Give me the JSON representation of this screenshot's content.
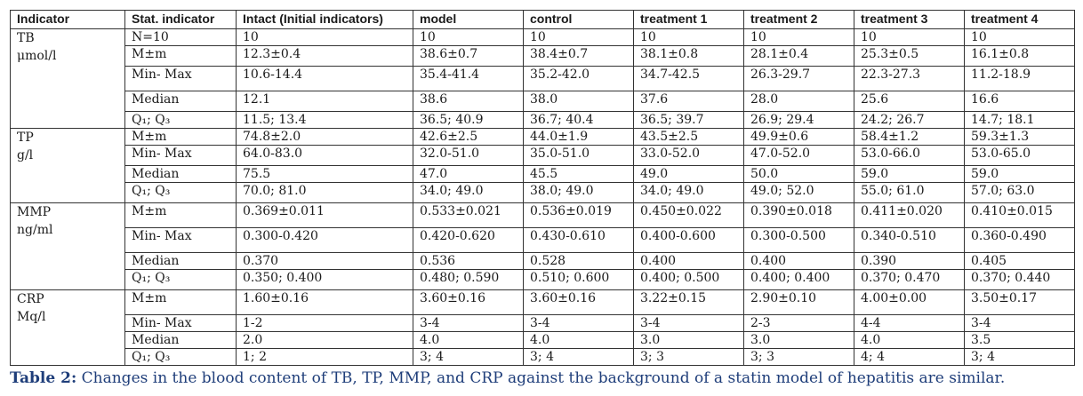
{
  "table": {
    "headers": [
      "Indicator",
      "Stat. indicator",
      "Intact (Initial indicators)",
      "model",
      "control",
      "treatment 1",
      "treatment 2",
      "treatment 3",
      "treatment 4"
    ],
    "groups": [
      {
        "name_lines": [
          "TB",
          "μmol/l"
        ],
        "rows": [
          {
            "stat": "N=10",
            "values": [
              "10",
              "10",
              "10",
              "10",
              "10",
              "10",
              "10"
            ]
          },
          {
            "stat": "M±m",
            "values": [
              "12.3±0.4",
              "38.6±0.7",
              "38.4±0.7",
              "38.1±0.8",
              "28.1±0.4",
              "25.3±0.5",
              "16.1±0.8"
            ]
          },
          {
            "stat": "Min- Max",
            "values": [
              "10.6-14.4",
              "35.4-41.4",
              "35.2-42.0",
              "34.7-42.5",
              "26.3-29.7",
              "22.3-27.3",
              "11.2-18.9"
            ]
          },
          {
            "stat": "Median",
            "values": [
              "12.1",
              "38.6",
              "38.0",
              "37.6",
              "28.0",
              "25.6",
              "16.6"
            ]
          },
          {
            "stat": "Q₁; Q₃",
            "values": [
              "11.5; 13.4",
              "36.5; 40.9",
              "36.7; 40.4",
              "36.5; 39.7",
              "26.9; 29.4",
              "24.2; 26.7",
              "14.7; 18.1"
            ]
          }
        ]
      },
      {
        "name_lines": [
          "TP",
          "g/l"
        ],
        "rows": [
          {
            "stat": "M±m",
            "values": [
              "74.8±2.0",
              "42.6±2.5",
              "44.0±1.9",
              "43.5±2.5",
              "49.9±0.6",
              "58.4±1.2",
              "59.3±1.3"
            ]
          },
          {
            "stat": "Min- Max",
            "values": [
              "64.0-83.0",
              "32.0-51.0",
              "35.0-51.0",
              "33.0-52.0",
              "47.0-52.0",
              "53.0-66.0",
              "53.0-65.0"
            ]
          },
          {
            "stat": "Median",
            "values": [
              "75.5",
              "47.0",
              "45.5",
              "49.0",
              "50.0",
              "59.0",
              "59.0"
            ]
          },
          {
            "stat": "Q₁; Q₃",
            "values": [
              "70.0; 81.0",
              "34.0; 49.0",
              "38.0; 49.0",
              "34.0; 49.0",
              "49.0; 52.0",
              "55.0; 61.0",
              "57.0; 63.0"
            ]
          }
        ]
      },
      {
        "name_lines": [
          "MMP",
          "ng/ml"
        ],
        "rows": [
          {
            "stat": "M±m",
            "values": [
              "0.369±0.011",
              "0.533±0.021",
              "0.536±0.019",
              "0.450±0.022",
              "0.390±0.018",
              "0.411±0.020",
              "0.410±0.015"
            ]
          },
          {
            "stat": "Min- Max",
            "values": [
              "0.300-0.420",
              "0.420-0.620",
              "0.430-0.610",
              "0.400-0.600",
              "0.300-0.500",
              "0.340-0.510",
              "0.360-0.490"
            ]
          },
          {
            "stat": "Median",
            "values": [
              "0.370",
              "0.536",
              "0.528",
              "0.400",
              "0.400",
              "0.390",
              "0.405"
            ]
          },
          {
            "stat": "Q₁; Q₃",
            "values": [
              "0.350; 0.400",
              "0.480; 0.590",
              "0.510; 0.600",
              "0.400; 0.500",
              "0.400; 0.400",
              "0.370; 0.470",
              "0.370; 0.440"
            ]
          }
        ]
      },
      {
        "name_lines": [
          "CRP",
          "Mq/l"
        ],
        "rows": [
          {
            "stat": "M±m",
            "values": [
              "1.60±0.16",
              "3.60±0.16",
              "3.60±0.16",
              "3.22±0.15",
              "2.90±0.10",
              "4.00±0.00",
              "3.50±0.17"
            ]
          },
          {
            "stat": "Min- Max",
            "values": [
              "1-2",
              "3-4",
              "3-4",
              "3-4",
              "2-3",
              "4-4",
              "3-4"
            ]
          },
          {
            "stat": "Median",
            "values": [
              "2.0",
              "4.0",
              "4.0",
              "3.0",
              "3.0",
              "4.0",
              "3.5"
            ]
          },
          {
            "stat": "Q₁; Q₃",
            "values": [
              "1; 2",
              "3; 4",
              "3; 4",
              "3; 3",
              "3; 3",
              "4; 4",
              "3; 4"
            ]
          }
        ]
      }
    ]
  },
  "caption": {
    "label": "Table 2:",
    "text": "Changes in the blood content of TB, TP, MMP, and CRP against the background of a statin model of hepatitis are similar."
  },
  "colors": {
    "caption": "#1f3e7a",
    "border": "#333333",
    "text": "#1a1a1a"
  }
}
